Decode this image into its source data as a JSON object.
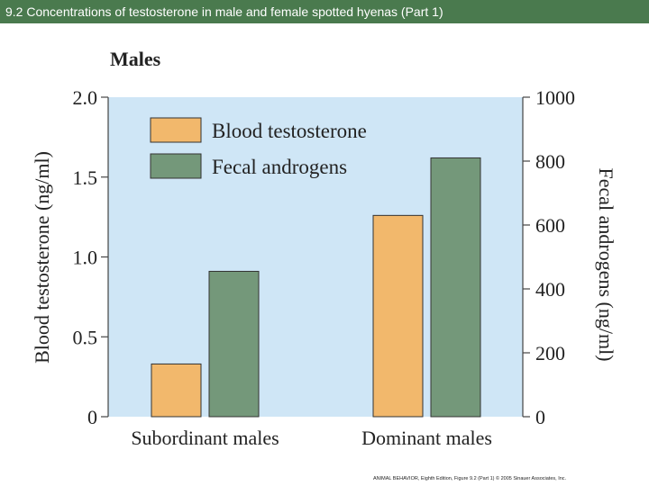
{
  "slide": {
    "title": "9.2  Concentrations of testosterone in male and female spotted hyenas (Part 1)",
    "credit": "ANIMAL BEHAVIOR, Eighth Edition, Figure 9.2 (Part 1) © 2005 Sinauer Associates, Inc."
  },
  "colors": {
    "title_bar": "#4a7a4e",
    "plot_bg": "#cfe6f6",
    "blood": "#f2b86c",
    "fecal": "#74987a"
  },
  "chart_data": {
    "type": "bar",
    "title": "Males",
    "categories": [
      "Subordinant males",
      "Dominant males"
    ],
    "series": [
      {
        "name": "Blood testosterone",
        "axis": "left",
        "values": [
          0.33,
          1.26
        ]
      },
      {
        "name": "Fecal androgens",
        "axis": "right",
        "values": [
          455,
          810
        ]
      }
    ],
    "ylabel": "Blood testosterone (ng/ml)",
    "ylim": [
      0,
      2.0
    ],
    "yticks": [
      "0",
      "0.5",
      "1.0",
      "1.5",
      "2.0"
    ],
    "y2label": "Fecal androgens (ng/ml)",
    "y2lim": [
      0,
      1000
    ],
    "y2ticks": [
      "0",
      "200",
      "400",
      "600",
      "800",
      "1000"
    ],
    "legend": "top-left",
    "grid": false
  }
}
